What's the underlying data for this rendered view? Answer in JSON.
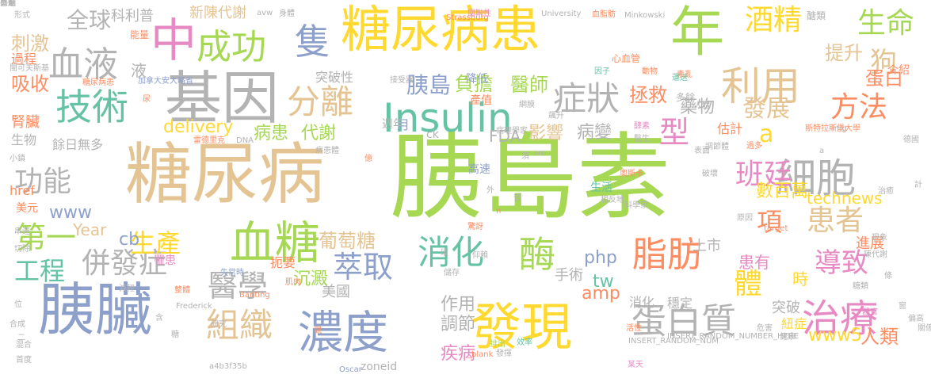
{
  "palette": {
    "green": "#a6d854",
    "orange": "#fc8d62",
    "blue": "#8da0cb",
    "pink": "#e78ac3",
    "yellow": "#ffd92f",
    "tan": "#e5c494",
    "gray": "#b3b3b3",
    "teal": "#66c2a5"
  },
  "words": [
    {
      "t": "胰島素",
      "c": "green"
    },
    {
      "t": "糖尿病",
      "c": "tan"
    },
    {
      "t": "糖尿病患",
      "c": "yellow"
    },
    {
      "t": "基因",
      "c": "gray"
    },
    {
      "t": "胰臟",
      "c": "blue"
    },
    {
      "t": "年",
      "c": "green"
    },
    {
      "t": "發現",
      "c": "yellow"
    },
    {
      "t": "濃度",
      "c": "blue"
    },
    {
      "t": "血糖",
      "c": "green"
    },
    {
      "t": "技術",
      "c": "teal"
    },
    {
      "t": "Insulin",
      "c": "teal"
    },
    {
      "t": "治療",
      "c": "pink"
    },
    {
      "t": "利用",
      "c": "tan"
    },
    {
      "t": "細胞",
      "c": "gray"
    },
    {
      "t": "中",
      "c": "pink"
    },
    {
      "t": "成功",
      "c": "green"
    },
    {
      "t": "隻",
      "c": "blue"
    },
    {
      "t": "血液",
      "c": "gray"
    },
    {
      "t": "分離",
      "c": "tan"
    },
    {
      "t": "症狀",
      "c": "gray"
    },
    {
      "t": "消化",
      "c": "teal"
    },
    {
      "t": "酶",
      "c": "green"
    },
    {
      "t": "脂肪",
      "c": "orange"
    },
    {
      "t": "蛋白質",
      "c": "gray"
    },
    {
      "t": "組織",
      "c": "tan"
    },
    {
      "t": "併發症",
      "c": "gray"
    },
    {
      "t": "功能",
      "c": "gray"
    },
    {
      "t": "第一",
      "c": "green"
    },
    {
      "t": "醫學",
      "c": "gray"
    },
    {
      "t": "萃取",
      "c": "blue"
    },
    {
      "t": "工程",
      "c": "teal"
    },
    {
      "t": "患者",
      "c": "tan"
    },
    {
      "t": "導致",
      "c": "pink"
    },
    {
      "t": "酒精",
      "c": "yellow"
    },
    {
      "t": "生命",
      "c": "green"
    },
    {
      "t": "方法",
      "c": "orange"
    },
    {
      "t": "狗",
      "c": "tan"
    },
    {
      "t": "型",
      "c": "pink"
    },
    {
      "t": "班廷",
      "c": "pink"
    },
    {
      "t": "項",
      "c": "orange"
    },
    {
      "t": "體",
      "c": "yellow"
    },
    {
      "t": "a",
      "c": "yellow"
    },
    {
      "t": "發展",
      "c": "tan"
    },
    {
      "t": "胰島",
      "c": "blue"
    },
    {
      "t": "負擔",
      "c": "green"
    },
    {
      "t": "醫師",
      "c": "green"
    },
    {
      "t": "生產",
      "c": "yellow"
    },
    {
      "t": "全球",
      "c": "gray"
    },
    {
      "t": "刺激",
      "c": "tan"
    },
    {
      "t": "吸收",
      "c": "orange"
    },
    {
      "t": "delivery",
      "c": "yellow"
    },
    {
      "t": "病患",
      "c": "green"
    },
    {
      "t": "代謝",
      "c": "green"
    },
    {
      "t": "technews",
      "c": "yellow"
    },
    {
      "t": "葡萄糖",
      "c": "tan"
    },
    {
      "t": "www5",
      "c": "yellow"
    },
    {
      "t": "人類",
      "c": "orange"
    },
    {
      "t": "cb",
      "c": "blue"
    },
    {
      "t": "Year",
      "c": "tan"
    },
    {
      "t": "蛋白",
      "c": "orange"
    },
    {
      "t": "提升",
      "c": "tan"
    },
    {
      "t": "拯救",
      "c": "orange"
    },
    {
      "t": "影響",
      "c": "tan"
    },
    {
      "t": "病變",
      "c": "gray"
    },
    {
      "t": "藥物",
      "c": "gray"
    },
    {
      "t": "數百萬",
      "c": "yellow"
    },
    {
      "t": "www",
      "c": "blue"
    },
    {
      "t": "科利普",
      "c": "gray"
    },
    {
      "t": "php",
      "c": "blue"
    },
    {
      "t": "tw",
      "c": "teal"
    },
    {
      "t": "amp",
      "c": "orange"
    },
    {
      "t": "調節",
      "c": "gray"
    },
    {
      "t": "作用",
      "c": "gray"
    },
    {
      "t": "疾病",
      "c": "pink"
    },
    {
      "t": "沉澱",
      "c": "green"
    },
    {
      "t": "美國",
      "c": "gray"
    },
    {
      "t": "手術",
      "c": "gray"
    },
    {
      "t": "上市",
      "c": "gray"
    },
    {
      "t": "患有",
      "c": "pink"
    },
    {
      "t": "時",
      "c": "yellow"
    },
    {
      "t": "突破",
      "c": "gray"
    },
    {
      "t": "穩定",
      "c": "gray"
    },
    {
      "t": "消化",
      "c": "gray"
    },
    {
      "t": "新陳代謝",
      "c": "tan"
    },
    {
      "t": "月",
      "c": "blue"
    },
    {
      "t": "FDA",
      "c": "gray"
    },
    {
      "t": "高速",
      "c": "blue"
    },
    {
      "t": "液",
      "c": "gray"
    },
    {
      "t": "突破性",
      "c": "gray"
    },
    {
      "t": "產值",
      "c": "orange"
    },
    {
      "t": "降低",
      "c": "blue"
    },
    {
      "t": "週年",
      "c": "gray"
    },
    {
      "t": "餘日無多",
      "c": "gray"
    },
    {
      "t": "腎臟",
      "c": "orange"
    },
    {
      "t": "生物",
      "c": "gray"
    },
    {
      "t": "過程",
      "c": "orange"
    },
    {
      "t": "能量",
      "c": "orange"
    },
    {
      "t": "href",
      "c": "orange"
    },
    {
      "t": "美元",
      "c": "orange"
    },
    {
      "t": "進展",
      "c": "orange"
    },
    {
      "t": "紐症",
      "c": "yellow"
    },
    {
      "t": "介紹",
      "c": "orange"
    },
    {
      "t": "估計",
      "c": "orange"
    },
    {
      "t": "生活",
      "c": "teal"
    },
    {
      "t": "罹患",
      "c": "pink"
    },
    {
      "t": "病理學家",
      "c": "gray"
    },
    {
      "t": "扼要",
      "c": "orange"
    },
    {
      "t": "ck",
      "c": "gray"
    },
    {
      "t": "Minkowski",
      "c": "gray"
    },
    {
      "t": "Strassburg",
      "c": "orange"
    },
    {
      "t": "University",
      "c": "gray"
    },
    {
      "t": "血脂肪",
      "c": "orange"
    },
    {
      "t": "醣類",
      "c": "gray"
    },
    {
      "t": "關聯性",
      "c": "pink"
    },
    {
      "t": "avw",
      "c": "gray"
    },
    {
      "t": "身體",
      "c": "gray"
    },
    {
      "t": "形式",
      "c": "gray"
    },
    {
      "t": "心血管",
      "c": "orange"
    },
    {
      "t": "因子",
      "c": "teal"
    },
    {
      "t": "動物",
      "c": "orange"
    },
    {
      "t": "運送",
      "c": "teal"
    },
    {
      "t": "多餘",
      "c": "gray"
    },
    {
      "t": "人體",
      "c": "gray"
    },
    {
      "t": "斯特拉斯堡大學",
      "c": "orange"
    },
    {
      "t": "img",
      "c": "gray"
    },
    {
      "t": "德國",
      "c": "gray"
    },
    {
      "t": "調節體",
      "c": "gray"
    },
    {
      "t": "過多",
      "c": "orange"
    },
    {
      "t": "原因",
      "c": "gray"
    },
    {
      "t": "target",
      "c": "orange"
    },
    {
      "t": "現象",
      "c": "gray"
    },
    {
      "t": "陳代謝",
      "c": "gray"
    },
    {
      "t": "糖類",
      "c": "gray"
    },
    {
      "t": "器官",
      "c": "pink"
    },
    {
      "t": "偏高",
      "c": "gray"
    },
    {
      "t": "危害",
      "c": "gray"
    },
    {
      "t": "健康",
      "c": "gray"
    },
    {
      "t": "INSERT_RANDOM_NUM",
      "c": "gray"
    },
    {
      "t": "INSERT_RANDOM_NUMBER_HERE",
      "c": "gray"
    },
    {
      "t": "a4b3f35b",
      "c": "gray"
    },
    {
      "t": "某天",
      "c": "pink"
    },
    {
      "t": "zoneid",
      "c": "gray"
    },
    {
      "t": "Oscar",
      "c": "blue"
    },
    {
      "t": "發揮",
      "c": "gray"
    },
    {
      "t": "活性",
      "c": "orange"
    },
    {
      "t": "_blank",
      "c": "orange"
    },
    {
      "t": "效率",
      "c": "teal"
    },
    {
      "t": "環",
      "c": "gray"
    },
    {
      "t": "仰賴",
      "c": "gray"
    },
    {
      "t": "儲存",
      "c": "gray"
    },
    {
      "t": "排出",
      "c": "green"
    },
    {
      "t": "失常時",
      "c": "blue"
    },
    {
      "t": "肌肉",
      "c": "orange"
    },
    {
      "t": "Banting",
      "c": "orange"
    },
    {
      "t": "整體",
      "c": "orange"
    },
    {
      "t": "Frederick",
      "c": "gray"
    },
    {
      "t": "研究",
      "c": "gray"
    },
    {
      "t": "切除",
      "c": "gray"
    },
    {
      "t": "串連",
      "c": "gray"
    },
    {
      "t": "合成",
      "c": "gray"
    },
    {
      "t": "混合",
      "c": "gray"
    },
    {
      "t": "首度",
      "c": "gray"
    },
    {
      "t": "小鎮",
      "c": "gray"
    },
    {
      "t": "閩可夫斯基",
      "c": "gray"
    },
    {
      "t": "糖尿病患",
      "c": "orange"
    },
    {
      "t": "加拿大安大略省",
      "c": "blue"
    },
    {
      "t": "病患體",
      "c": "gray"
    },
    {
      "t": "雷德里克",
      "c": "orange"
    },
    {
      "t": "DNA",
      "c": "gray"
    },
    {
      "t": "接受器",
      "c": "gray"
    },
    {
      "t": "飆升",
      "c": "gray"
    },
    {
      "t": "網膜",
      "c": "gray"
    },
    {
      "t": "奧斯卡",
      "c": "orange"
    },
    {
      "t": "科學家",
      "c": "gray"
    },
    {
      "t": "相反地",
      "c": "gray"
    },
    {
      "t": "酵素",
      "c": "pink"
    },
    {
      "t": "醫生",
      "c": "gray"
    },
    {
      "t": "表面",
      "c": "gray"
    },
    {
      "t": "億",
      "c": "orange"
    },
    {
      "t": "須",
      "c": "gray"
    },
    {
      "t": "src",
      "c": "gray"
    },
    {
      "t": "外",
      "c": "gray"
    },
    {
      "t": "n",
      "c": "orange"
    },
    {
      "t": "a",
      "c": "gray"
    },
    {
      "t": "尿",
      "c": "orange"
    },
    {
      "t": "減輕",
      "c": "gray"
    },
    {
      "t": "治癒",
      "c": "gray"
    },
    {
      "t": "計",
      "c": "gray"
    },
    {
      "t": "條",
      "c": "gray"
    },
    {
      "t": "關係",
      "c": "gray"
    },
    {
      "t": "位",
      "c": "gray"
    },
    {
      "t": "二",
      "c": "gray"
    },
    {
      "t": "含",
      "c": "gray"
    },
    {
      "t": "觀",
      "c": "orange"
    },
    {
      "t": "糖",
      "c": "gray"
    },
    {
      "t": "驚訝",
      "c": "orange"
    },
    {
      "t": "音",
      "c": "gray"
    },
    {
      "t": "窗",
      "c": "gray"
    },
    {
      "t": "破壞",
      "c": "gray"
    },
    {
      "t": "素亂",
      "c": "orange"
    },
    {
      "t": "感動",
      "c": "gray"
    },
    {
      "t": "豪華",
      "c": "gray"
    },
    {
      "t": "普遍",
      "c": "gray"
    }
  ]
}
